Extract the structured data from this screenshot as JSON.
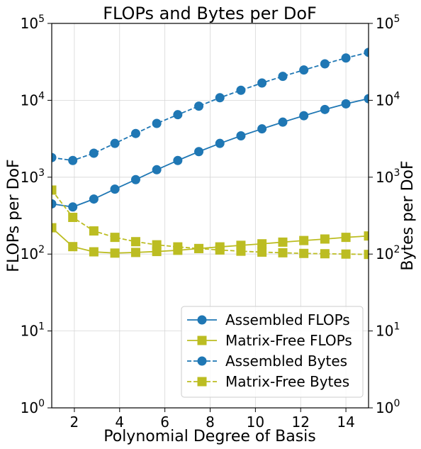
{
  "chart_data": {
    "type": "line",
    "title": "FLOPs and Bytes per DoF",
    "xlabel": "Polynomial Degree of Basis",
    "ylabel": "FLOPs per DoF",
    "y2label": "Bytes per DoF",
    "xlim": [
      1,
      15
    ],
    "ylim": [
      1,
      100000
    ],
    "yscale": "log",
    "grid": true,
    "legend_position": "lower-right",
    "x_ticks": [
      2,
      4,
      6,
      8,
      10,
      12,
      14
    ],
    "y_ticks": [
      {
        "value": 1,
        "base": "10",
        "exp": "0"
      },
      {
        "value": 10,
        "base": "10",
        "exp": "1"
      },
      {
        "value": 100,
        "base": "10",
        "exp": "2"
      },
      {
        "value": 1000,
        "base": "10",
        "exp": "3"
      },
      {
        "value": 10000,
        "base": "10",
        "exp": "4"
      },
      {
        "value": 100000,
        "base": "10",
        "exp": "5"
      }
    ],
    "x": [
      1,
      1.93,
      2.86,
      3.79,
      4.71,
      5.64,
      6.57,
      7.5,
      8.43,
      9.36,
      10.29,
      11.21,
      12.14,
      13.07,
      14,
      15
    ],
    "series": [
      {
        "name": "Assembled FLOPs",
        "color": "#1f77b4",
        "marker": "circle",
        "dash": false,
        "values": [
          450,
          410,
          520,
          700,
          930,
          1250,
          1650,
          2150,
          2750,
          3450,
          4250,
          5200,
          6300,
          7600,
          9000,
          10500
        ]
      },
      {
        "name": "Matrix-Free FLOPs",
        "color": "#bcbd22",
        "marker": "square",
        "dash": false,
        "values": [
          220,
          125,
          107,
          103,
          105,
          108,
          112,
          118,
          124,
          130,
          136,
          143,
          150,
          157,
          165,
          172
        ]
      },
      {
        "name": "Assembled Bytes",
        "color": "#1f77b4",
        "marker": "circle",
        "dash": true,
        "values": [
          1800,
          1650,
          2050,
          2750,
          3700,
          5000,
          6500,
          8400,
          10800,
          13500,
          16800,
          20500,
          24800,
          29800,
          35500,
          42000
        ]
      },
      {
        "name": "Matrix-Free Bytes",
        "color": "#bcbd22",
        "marker": "square",
        "dash": true,
        "values": [
          680,
          300,
          200,
          165,
          145,
          132,
          124,
          118,
          113,
          109,
          106,
          104,
          102,
          101,
          100,
          99
        ]
      }
    ]
  }
}
